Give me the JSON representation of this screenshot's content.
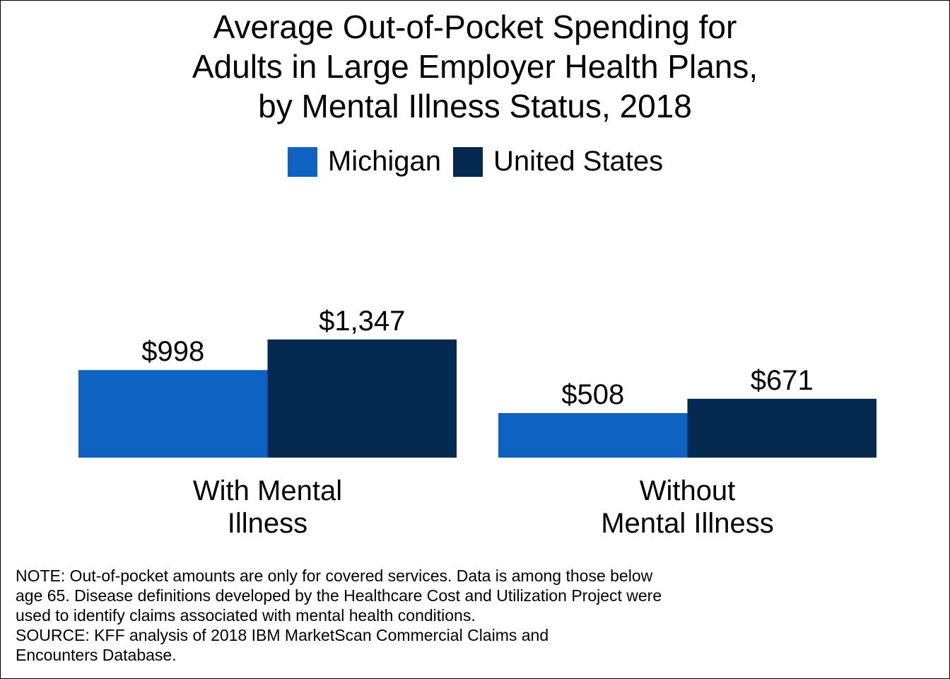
{
  "chart_data": {
    "type": "bar",
    "title": [
      "Average Out-of-Pocket Spending for",
      "Adults in Large Employer Health Plans,",
      "by Mental Illness Status, 2018"
    ],
    "categories": [
      [
        "With Mental",
        "Illness"
      ],
      [
        "Without",
        "Mental Illness"
      ]
    ],
    "series": [
      {
        "name": "Michigan",
        "color": "#0d62c2",
        "values": [
          998,
          508
        ],
        "labels": [
          "$998",
          "$508"
        ]
      },
      {
        "name": "United States",
        "color": "#052a52",
        "values": [
          1347,
          671
        ],
        "labels": [
          "$1,347",
          "$671"
        ]
      }
    ],
    "ylim": [
      0,
      3000
    ],
    "grid": false,
    "legend_position": "top-center"
  },
  "notes": [
    "NOTE: Out-of-pocket amounts are only for covered services. Data is among those below",
    "age 65. Disease definitions developed by the Healthcare Cost and Utilization Project were",
    "used to identify claims associated with mental health conditions.",
    "SOURCE: KFF analysis of 2018 IBM MarketScan Commercial Claims and",
    "Encounters Database."
  ]
}
